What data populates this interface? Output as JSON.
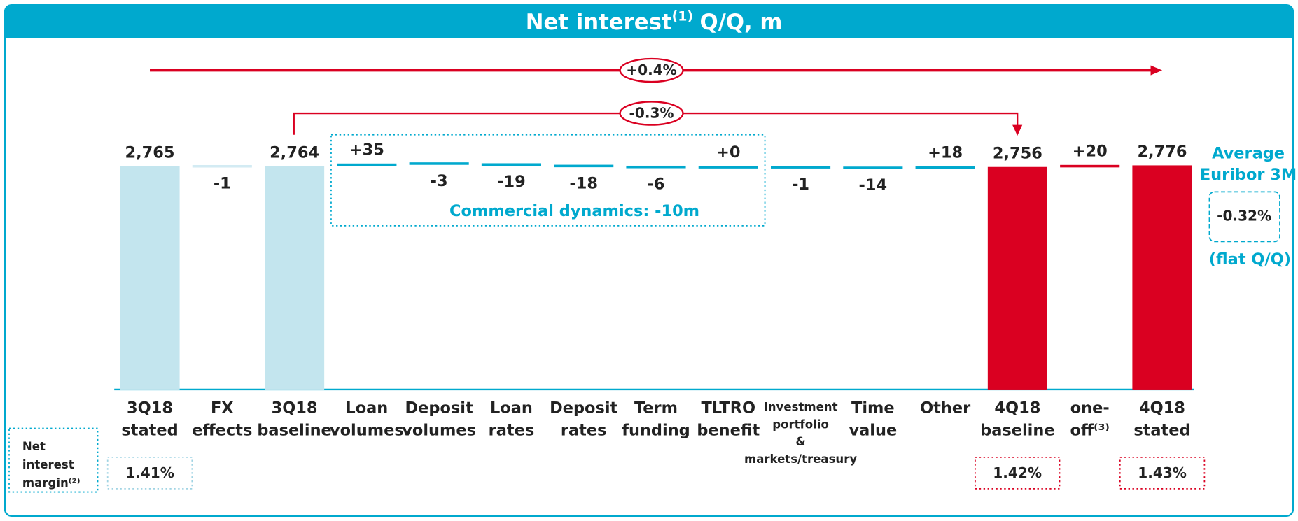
{
  "chart_data": {
    "type": "waterfall",
    "title": "Net interest",
    "title_note": "(1)",
    "title_suffix": "Q/Q, m",
    "categories": [
      [
        "3Q18",
        "stated"
      ],
      [
        "FX",
        "effects"
      ],
      [
        "3Q18",
        "baseline"
      ],
      [
        "Loan",
        "volumes"
      ],
      [
        "Deposit",
        "volumes"
      ],
      [
        "Loan",
        "rates"
      ],
      [
        "Deposit",
        "rates"
      ],
      [
        "Term",
        "funding"
      ],
      [
        "TLTRO",
        "benefit"
      ],
      [
        "Investment",
        "portfolio",
        "&",
        "markets/treasury"
      ],
      [
        "Time",
        "value"
      ],
      [
        "Other"
      ],
      [
        "4Q18",
        "baseline"
      ],
      [
        "one-",
        "off⁽³⁾"
      ],
      [
        "4Q18",
        "stated"
      ]
    ],
    "values": [
      2765,
      -1,
      2764,
      35,
      -3,
      -19,
      -18,
      -6,
      0,
      -1,
      -14,
      18,
      2756,
      20,
      2776
    ],
    "value_labels": [
      "2,765",
      "-1",
      "2,764",
      "+35",
      "-3",
      "-19",
      "-18",
      "-6",
      "+0",
      "-1",
      "-14",
      "+18",
      "2,756",
      "+20",
      "2,776"
    ],
    "kinds": [
      "total",
      "delta",
      "total",
      "delta",
      "delta",
      "delta",
      "delta",
      "delta",
      "delta",
      "delta",
      "delta",
      "delta",
      "total",
      "delta",
      "total"
    ],
    "colors": [
      "#c3e5ee",
      "#d3ebf3",
      "#c3e5ee",
      "#00a9ce",
      "#00a9ce",
      "#00a9ce",
      "#00a9ce",
      "#00a9ce",
      "#00a9ce",
      "#00a9ce",
      "#00a9ce",
      "#00a9ce",
      "#da0021",
      "#da0021",
      "#da0021"
    ],
    "ylim": [
      0,
      2800
    ],
    "annotations": {
      "overall_change": "+0.4%",
      "baseline_change": "-0.3%",
      "commercial_dynamics": "Commercial dynamics: -10m"
    },
    "euribor": {
      "label": [
        "Average",
        "Euribor 3M"
      ],
      "value": "-0.32%",
      "note": "(flat Q/Q)"
    },
    "nim": {
      "label": [
        "Net",
        "interest",
        "margin⁽²⁾"
      ],
      "values": [
        "1.41%",
        "1.42%",
        "1.43%"
      ]
    }
  }
}
